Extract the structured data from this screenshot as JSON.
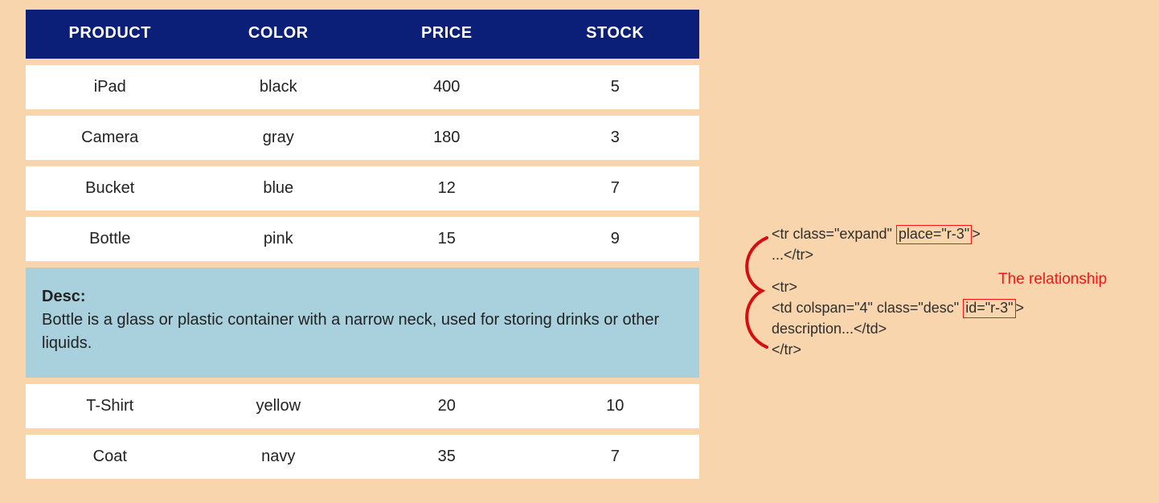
{
  "colors": {
    "page_bg": "#f8d5ad",
    "header_bg": "#0b1e78",
    "header_text": "#ffffff",
    "row_bg": "#ffffff",
    "row_text": "#222222",
    "desc_bg": "#a9d1dd",
    "annotation_text": "#2e2e2e",
    "highlight_border": "#ff1212",
    "relationship_label_color": "#ff1212",
    "brace_color": "#d40f0f"
  },
  "table": {
    "columns": [
      "PRODUCT",
      "COLOR",
      "PRICE",
      "STOCK"
    ],
    "rows": [
      {
        "product": "iPad",
        "color": "black",
        "price": "400",
        "stock": "5"
      },
      {
        "product": "Camera",
        "color": "gray",
        "price": "180",
        "stock": "3"
      },
      {
        "product": "Bucket",
        "color": "blue",
        "price": "12",
        "stock": "7"
      },
      {
        "product": "Bottle",
        "color": "pink",
        "price": "15",
        "stock": "9"
      },
      {
        "product": "T-Shirt",
        "color": "yellow",
        "price": "20",
        "stock": "10"
      },
      {
        "product": "Coat",
        "color": "navy",
        "price": "35",
        "stock": "7"
      }
    ],
    "desc_after_index": 3,
    "desc_label": "Desc:",
    "desc_text": "Bottle is a glass or plastic container with a narrow neck, used for storing drinks or other liquids."
  },
  "annotation": {
    "block1_pre": "<tr class=\"expand\" ",
    "block1_hl": "place=\"r-3\"",
    "block1_post": ">",
    "block1_line2": "...</tr>",
    "relationship_label": "The relationship",
    "block2_line1": "<tr>",
    "block2_line2_pre": "<td colspan=\"4\" class=\"desc\" ",
    "block2_line2_hl": "id=\"r-3\"",
    "block2_line2_post": ">",
    "block2_line3": "description...</td>",
    "block2_line4": "</tr>"
  }
}
